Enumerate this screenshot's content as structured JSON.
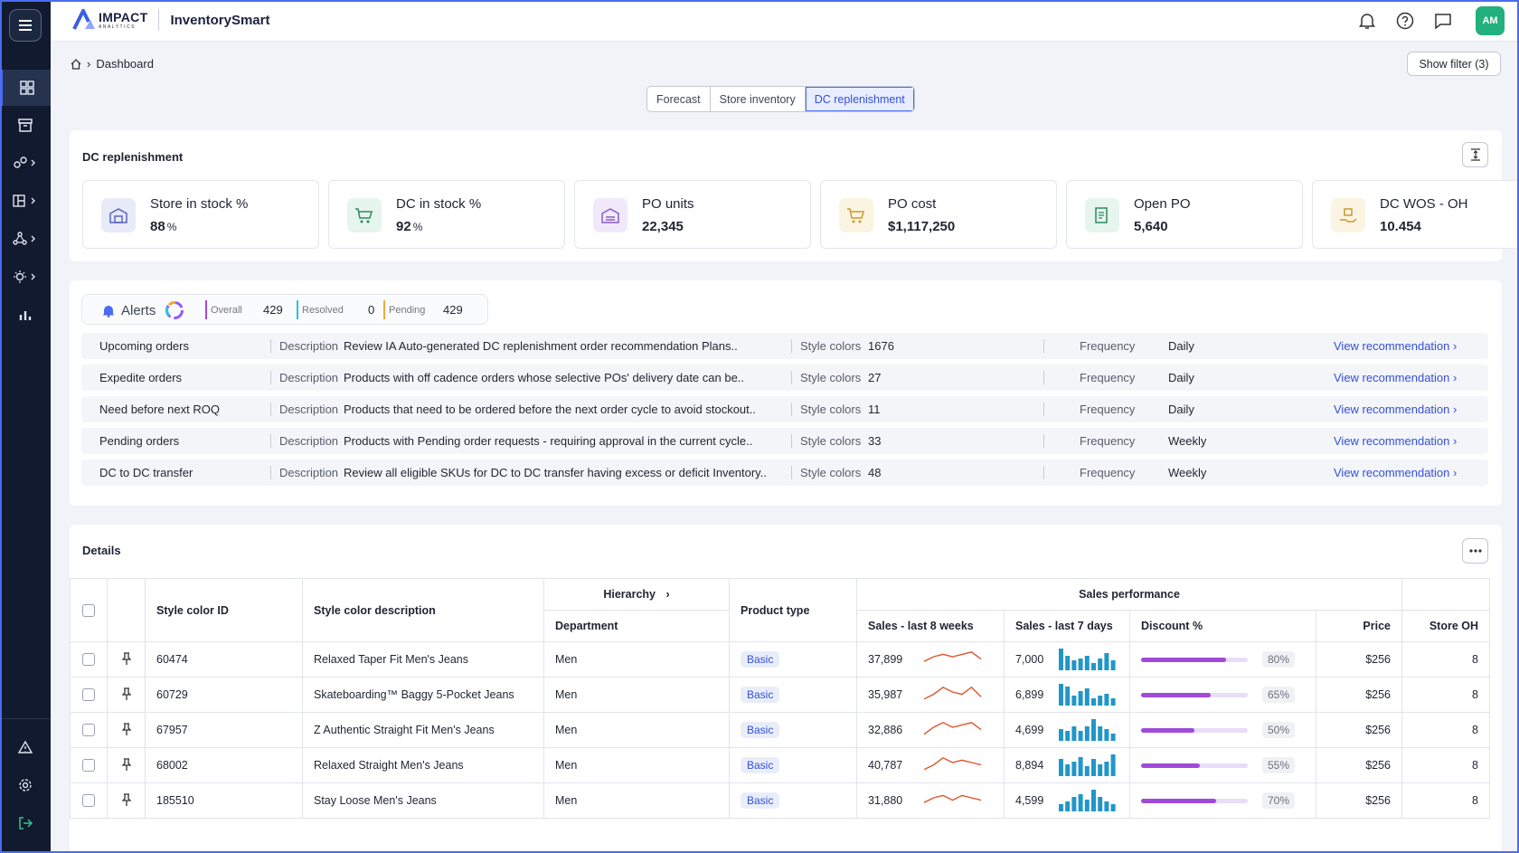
{
  "app": {
    "brand": "IMPACT",
    "brand_sub": "ANALYTICS",
    "name": "InventorySmart",
    "avatar": "AM"
  },
  "breadcrumb": {
    "current": "Dashboard"
  },
  "show_filter": "Show filter (3)",
  "tabs": [
    {
      "label": "Forecast",
      "active": false
    },
    {
      "label": "Store inventory",
      "active": false
    },
    {
      "label": "DC replenishment",
      "active": true
    }
  ],
  "summary": {
    "title": "DC replenishment",
    "kpis": [
      {
        "label": "Store in stock %",
        "value": "88",
        "unit": "%",
        "icon": "store-icon",
        "color": "#e8eaf8"
      },
      {
        "label": "DC in stock %",
        "value": "92",
        "unit": "%",
        "icon": "cart-icon",
        "color": "#e6f5ee"
      },
      {
        "label": "PO units",
        "value": "22,345",
        "unit": "",
        "icon": "warehouse-icon",
        "color": "#f1e9fa"
      },
      {
        "label": "PO cost",
        "value": "$1,117,250",
        "unit": "",
        "icon": "cart-cost-icon",
        "color": "#fbf4e2"
      },
      {
        "label": "Open PO",
        "value": "5,640",
        "unit": "",
        "icon": "document-icon",
        "color": "#e6f5ee"
      },
      {
        "label": "DC WOS - OH",
        "value": "10.454",
        "unit": "",
        "icon": "box-hand-icon",
        "color": "#fbf4e2"
      }
    ]
  },
  "alerts": {
    "label": "Alerts",
    "overall_label": "Overall",
    "overall": "429",
    "resolved_label": "Resolved",
    "resolved": "0",
    "pending_label": "Pending",
    "pending": "429",
    "description_label": "Description",
    "style_colors_label": "Style colors",
    "frequency_label": "Frequency",
    "rows": [
      {
        "name": "Upcoming orders",
        "description": "Review IA Auto-generated DC replenishment order recommendation Plans..",
        "style_colors": "1676",
        "frequency": "Daily",
        "action": "View recommendation ›"
      },
      {
        "name": "Expedite orders",
        "description": "Products with off cadence orders whose selective POs' delivery date can be..",
        "style_colors": "27",
        "frequency": "Daily",
        "action": "View recommendation ›"
      },
      {
        "name": "Need before next ROQ",
        "description": "Products that need to be ordered before the next order cycle to avoid stockout..",
        "style_colors": "11",
        "frequency": "Daily",
        "action": "View recommendation ›"
      },
      {
        "name": "Pending orders",
        "description": "Products with Pending order requests - requiring approval in the current cycle..",
        "style_colors": "33",
        "frequency": "Weekly",
        "action": "View recommendation ›"
      },
      {
        "name": "DC to DC transfer",
        "description": "Review all eligible SKUs for DC to DC transfer having excess or deficit Inventory..",
        "style_colors": "48",
        "frequency": "Weekly",
        "action": "View recommendation ›"
      }
    ]
  },
  "details": {
    "title": "Details",
    "group_headers": {
      "hierarchy": "Hierarchy",
      "sales_performance": "Sales performance"
    },
    "columns": {
      "style_color_id": "Style color ID",
      "style_color_description": "Style color description",
      "department": "Department",
      "product_type": "Product type",
      "sales_8w": "Sales - last 8 weeks",
      "sales_7d": "Sales - last 7 days",
      "discount": "Discount %",
      "price": "Price",
      "store_oh": "Store OH"
    },
    "rows": [
      {
        "id": "60474",
        "desc": "Relaxed Taper Fit Men's Jeans",
        "dept": "Men",
        "type": "Basic",
        "sales8": "37,899",
        "spark8": [
          3,
          5,
          6,
          5,
          6,
          7,
          4
        ],
        "sales7": "7,000",
        "bars7": [
          9,
          6,
          4,
          5,
          6,
          3,
          5,
          7,
          4
        ],
        "discount": 80,
        "discount_label": "80%",
        "price": "$256",
        "oh": "8"
      },
      {
        "id": "60729",
        "desc": "Skateboarding™ Baggy 5-Pocket Jeans",
        "dept": "Men",
        "type": "Basic",
        "sales8": "35,987",
        "spark8": [
          2,
          4,
          7,
          5,
          4,
          7,
          3
        ],
        "sales7": "6,899",
        "bars7": [
          9,
          8,
          4,
          6,
          7,
          3,
          4,
          5,
          3
        ],
        "discount": 65,
        "discount_label": "65%",
        "price": "$256",
        "oh": "8"
      },
      {
        "id": "67957",
        "desc": "Z Authentic Straight Fit Men's Jeans",
        "dept": "Men",
        "type": "Basic",
        "sales8": "32,886",
        "spark8": [
          2,
          5,
          7,
          5,
          6,
          7,
          4
        ],
        "sales7": "4,699",
        "bars7": [
          5,
          4,
          6,
          4,
          6,
          9,
          6,
          5,
          3
        ],
        "discount": 50,
        "discount_label": "50%",
        "price": "$256",
        "oh": "8"
      },
      {
        "id": "68002",
        "desc": "Relaxed Straight Men's Jeans",
        "dept": "Men",
        "type": "Basic",
        "sales8": "40,787",
        "spark8": [
          2,
          4,
          7,
          5,
          6,
          5,
          4
        ],
        "sales7": "8,894",
        "bars7": [
          7,
          5,
          6,
          8,
          4,
          7,
          5,
          6,
          9
        ],
        "discount": 55,
        "discount_label": "55%",
        "price": "$256",
        "oh": "8"
      },
      {
        "id": "185510",
        "desc": "Stay Loose Men's Jeans",
        "dept": "Men",
        "type": "Basic",
        "sales8": "31,880",
        "spark8": [
          3,
          5,
          6,
          4,
          6,
          5,
          4
        ],
        "sales7": "4,599",
        "bars7": [
          3,
          4,
          6,
          7,
          5,
          9,
          6,
          4,
          3
        ],
        "discount": 70,
        "discount_label": "70%",
        "price": "$256",
        "oh": "8"
      }
    ]
  },
  "colors": {
    "accent": "#4b6cf0",
    "sidebar": "#111a2e",
    "avatar": "#22b07d",
    "discount": "#a04ad8",
    "spark": "#e0552f",
    "bars": "#2196c9"
  }
}
